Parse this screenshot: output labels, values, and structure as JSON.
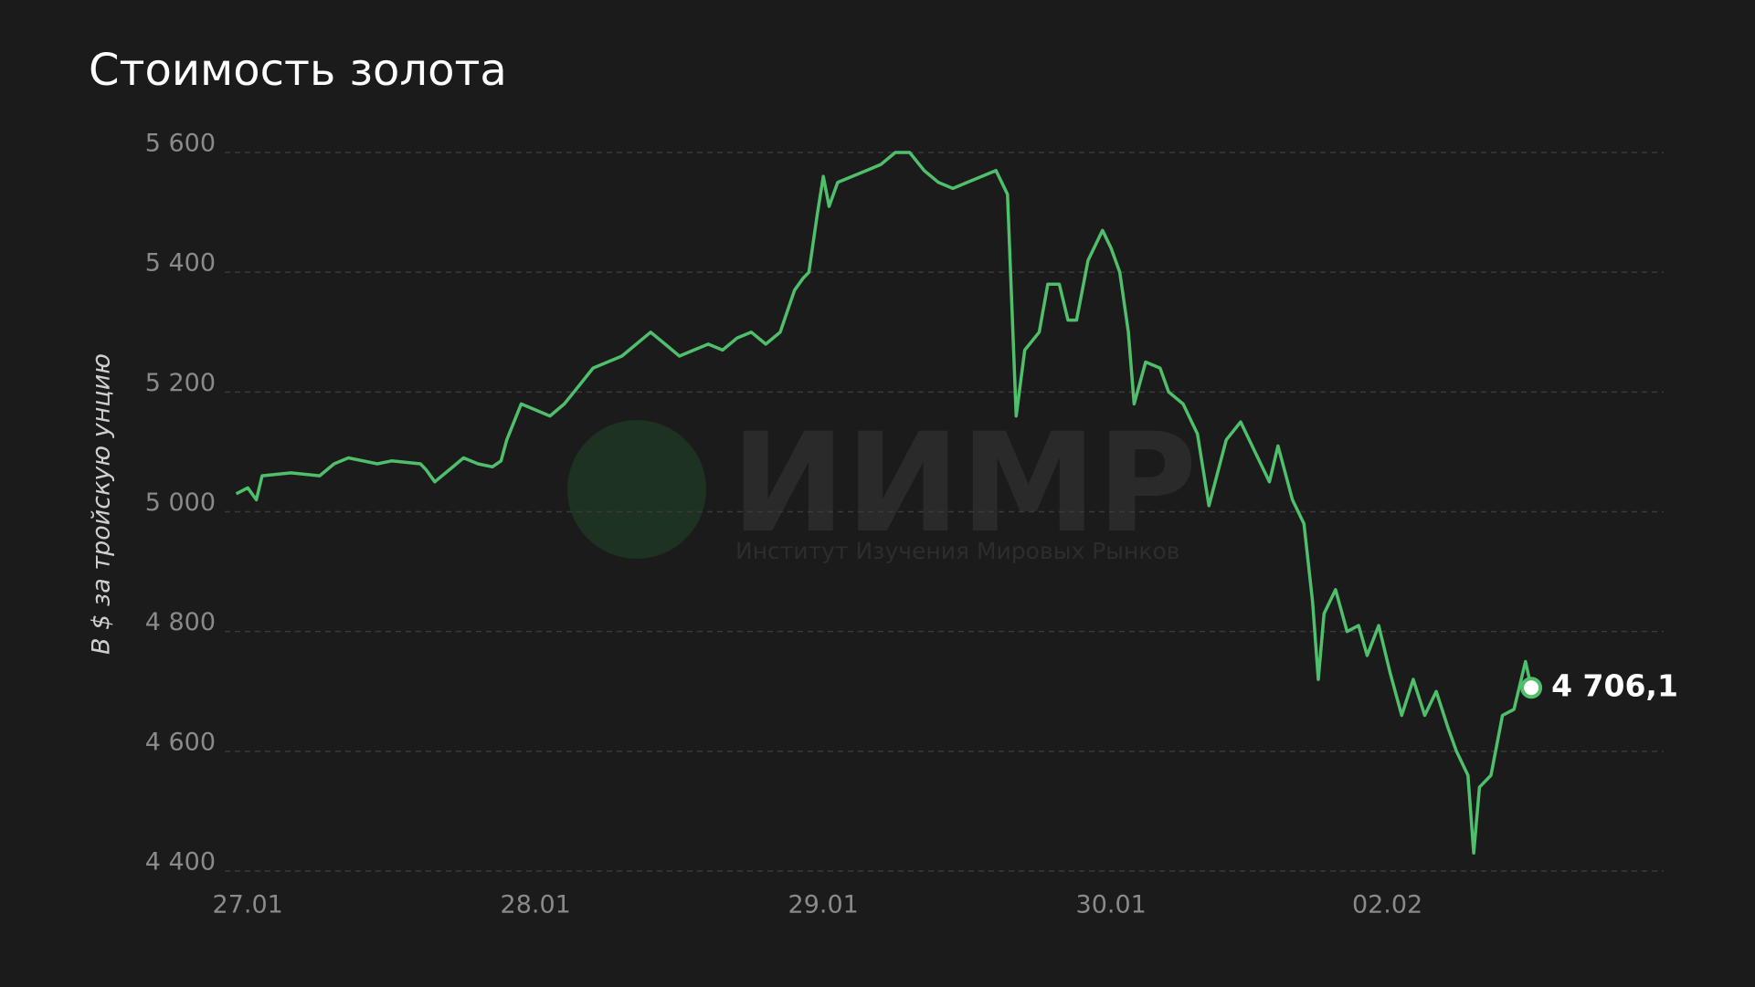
{
  "chart_data": {
    "type": "line",
    "title": "Стоимость золота",
    "ylabel": "В $ за тройскую унцию",
    "watermark": {
      "title": "ИИМР",
      "subtitle": "Институт Изучения Мировых Рынков"
    },
    "end_label": "4 706,1",
    "color": "#4fbf6b",
    "grid": true,
    "xlim": [
      -0.08,
      4.92
    ],
    "xticks": [
      {
        "value": 0,
        "label": "27.01"
      },
      {
        "value": 1,
        "label": "28.01"
      },
      {
        "value": 2,
        "label": "29.01"
      },
      {
        "value": 3,
        "label": "30.01"
      },
      {
        "value": 3.96,
        "label": "02.02"
      }
    ],
    "ylim": [
      4400,
      5600
    ],
    "yticks": [
      {
        "value": 4400,
        "label": "4 400"
      },
      {
        "value": 4600,
        "label": "4 600"
      },
      {
        "value": 4800,
        "label": "4 800"
      },
      {
        "value": 5000,
        "label": "5 000"
      },
      {
        "value": 5200,
        "label": "5 200"
      },
      {
        "value": 5400,
        "label": "5 400"
      },
      {
        "value": 5600,
        "label": "5 600"
      }
    ],
    "x": [
      -0.04,
      0.0,
      0.03,
      0.05,
      0.15,
      0.25,
      0.3,
      0.35,
      0.45,
      0.5,
      0.6,
      0.62,
      0.65,
      0.7,
      0.75,
      0.8,
      0.85,
      0.88,
      0.9,
      0.95,
      1.0,
      1.05,
      1.1,
      1.15,
      1.2,
      1.3,
      1.35,
      1.4,
      1.45,
      1.5,
      1.55,
      1.6,
      1.65,
      1.7,
      1.75,
      1.8,
      1.85,
      1.9,
      1.93,
      1.95,
      1.98,
      2.0,
      2.02,
      2.05,
      2.1,
      2.15,
      2.2,
      2.25,
      2.3,
      2.35,
      2.4,
      2.45,
      2.5,
      2.55,
      2.6,
      2.64,
      2.67,
      2.7,
      2.75,
      2.78,
      2.82,
      2.85,
      2.88,
      2.92,
      2.97,
      3.0,
      3.03,
      3.06,
      3.08,
      3.12,
      3.17,
      3.2,
      3.25,
      3.3,
      3.34,
      3.4,
      3.45,
      3.5,
      3.55,
      3.58,
      3.63,
      3.67,
      3.7,
      3.72,
      3.74,
      3.78,
      3.82,
      3.86,
      3.89,
      3.93,
      3.97,
      4.01,
      4.05,
      4.09,
      4.13,
      4.17,
      4.2,
      4.24,
      4.26,
      4.28,
      4.32,
      4.36,
      4.4,
      4.44,
      4.46
    ],
    "values": [
      5030,
      5040,
      5020,
      5060,
      5065,
      5060,
      5080,
      5090,
      5080,
      5085,
      5080,
      5070,
      5050,
      5070,
      5090,
      5080,
      5075,
      5085,
      5120,
      5180,
      5170,
      5160,
      5180,
      5210,
      5240,
      5260,
      5280,
      5300,
      5280,
      5260,
      5270,
      5280,
      5270,
      5290,
      5300,
      5280,
      5300,
      5370,
      5390,
      5400,
      5500,
      5560,
      5510,
      5550,
      5560,
      5570,
      5580,
      5600,
      5600,
      5570,
      5550,
      5540,
      5550,
      5560,
      5570,
      5530,
      5160,
      5270,
      5300,
      5380,
      5380,
      5320,
      5320,
      5420,
      5470,
      5440,
      5400,
      5300,
      5180,
      5250,
      5240,
      5200,
      5180,
      5130,
      5010,
      5120,
      5150,
      5100,
      5050,
      5110,
      5020,
      4980,
      4850,
      4720,
      4830,
      4870,
      4800,
      4810,
      4760,
      4810,
      4730,
      4660,
      4720,
      4660,
      4700,
      4640,
      4600,
      4560,
      4430,
      4540,
      4560,
      4660,
      4670,
      4750,
      4706.1
    ]
  }
}
